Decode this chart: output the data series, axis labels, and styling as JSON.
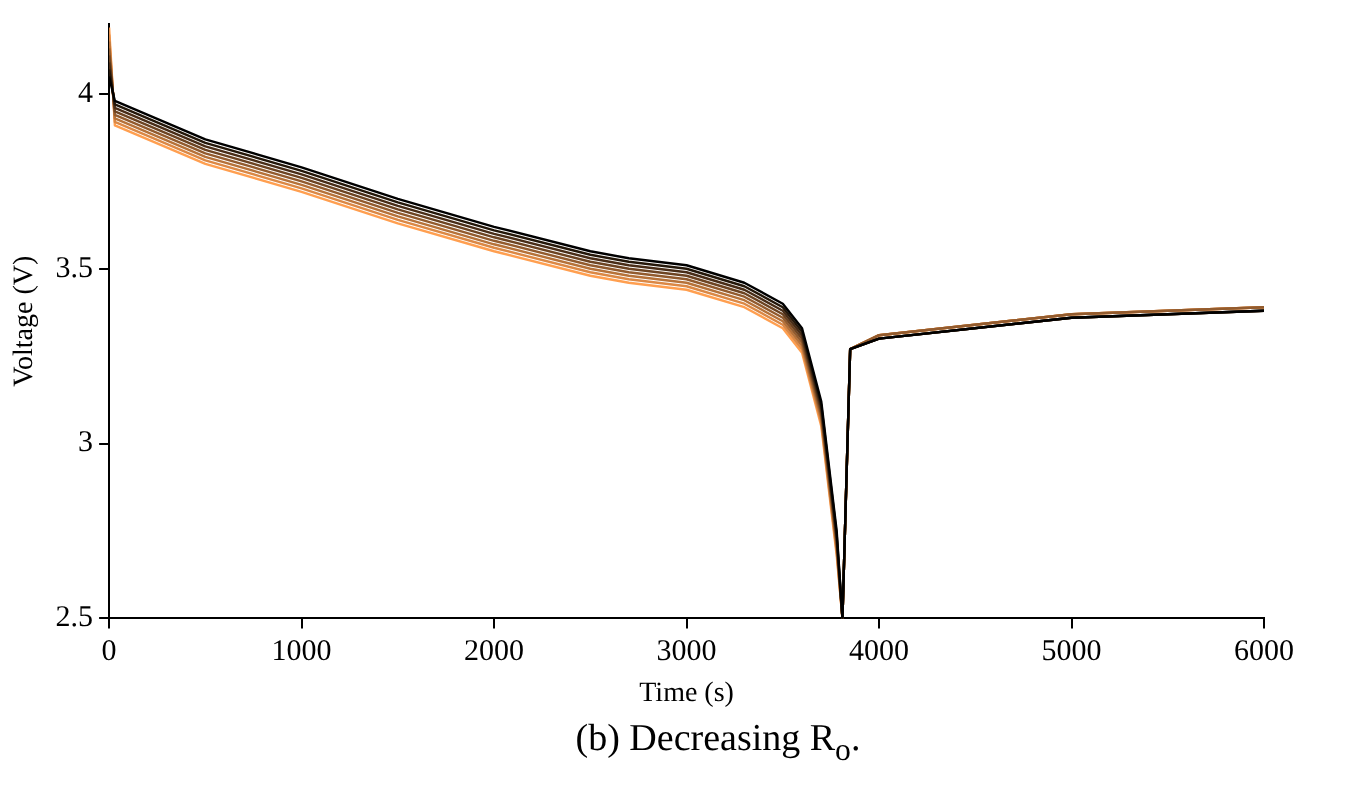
{
  "chart_data": {
    "type": "line",
    "xlabel": "Time (s)",
    "ylabel": "Voltage (V)",
    "annotations": [
      "(b) Decreasing R$_{o}$."
    ],
    "x": [
      0,
      30,
      500,
      1000,
      1500,
      2000,
      2500,
      2700,
      3000,
      3300,
      3500,
      3600,
      3700,
      3780,
      3810,
      3850,
      4000,
      5000,
      6000
    ],
    "series": [
      {
        "color": "#000000",
        "values": [
          4.05,
          3.98,
          3.87,
          3.79,
          3.7,
          3.62,
          3.55,
          3.53,
          3.51,
          3.46,
          3.4,
          3.33,
          3.12,
          2.75,
          2.5,
          3.27,
          3.3,
          3.36,
          3.38
        ]
      },
      {
        "color": "#241709",
        "values": [
          4.07,
          3.97,
          3.86,
          3.78,
          3.69,
          3.61,
          3.54,
          3.52,
          3.5,
          3.45,
          3.39,
          3.32,
          3.11,
          2.74,
          2.5,
          3.27,
          3.3,
          3.36,
          3.38
        ]
      },
      {
        "color": "#492d17",
        "values": [
          4.09,
          3.96,
          3.85,
          3.77,
          3.68,
          3.6,
          3.53,
          3.51,
          3.49,
          3.44,
          3.38,
          3.31,
          3.1,
          2.73,
          2.5,
          3.27,
          3.3,
          3.36,
          3.38
        ]
      },
      {
        "color": "#6d4422",
        "values": [
          4.11,
          3.95,
          3.84,
          3.76,
          3.67,
          3.59,
          3.52,
          3.5,
          3.48,
          3.43,
          3.37,
          3.3,
          3.09,
          2.72,
          2.5,
          3.27,
          3.3,
          3.36,
          3.38
        ]
      },
      {
        "color": "#925b2e",
        "values": [
          4.13,
          3.94,
          3.83,
          3.75,
          3.66,
          3.58,
          3.51,
          3.49,
          3.47,
          3.42,
          3.36,
          3.29,
          3.08,
          2.71,
          2.5,
          3.27,
          3.31,
          3.37,
          3.39
        ]
      },
      {
        "color": "#b67239",
        "values": [
          4.15,
          3.93,
          3.82,
          3.74,
          3.65,
          3.57,
          3.5,
          3.48,
          3.46,
          3.41,
          3.35,
          3.28,
          3.07,
          2.7,
          2.5,
          3.27,
          3.31,
          3.37,
          3.39
        ]
      },
      {
        "color": "#db8845",
        "values": [
          4.17,
          3.92,
          3.81,
          3.73,
          3.64,
          3.56,
          3.49,
          3.47,
          3.45,
          3.4,
          3.34,
          3.27,
          3.06,
          2.69,
          2.5,
          3.27,
          3.31,
          3.37,
          3.39
        ]
      },
      {
        "color": "#ff9f50",
        "values": [
          4.19,
          3.91,
          3.8,
          3.72,
          3.63,
          3.55,
          3.48,
          3.46,
          3.44,
          3.39,
          3.33,
          3.26,
          3.05,
          2.68,
          2.5,
          3.27,
          3.31,
          3.37,
          3.39
        ]
      }
    ],
    "xlim": [
      0,
      6000
    ],
    "xticks": [
      0,
      1000,
      2000,
      3000,
      4000,
      5000,
      6000
    ],
    "ylim": [
      2.5,
      4.2
    ],
    "yticks": [
      2.5,
      3,
      3.5,
      4
    ],
    "grid": false,
    "legend": false,
    "marker": "none",
    "line_style": "solid"
  }
}
